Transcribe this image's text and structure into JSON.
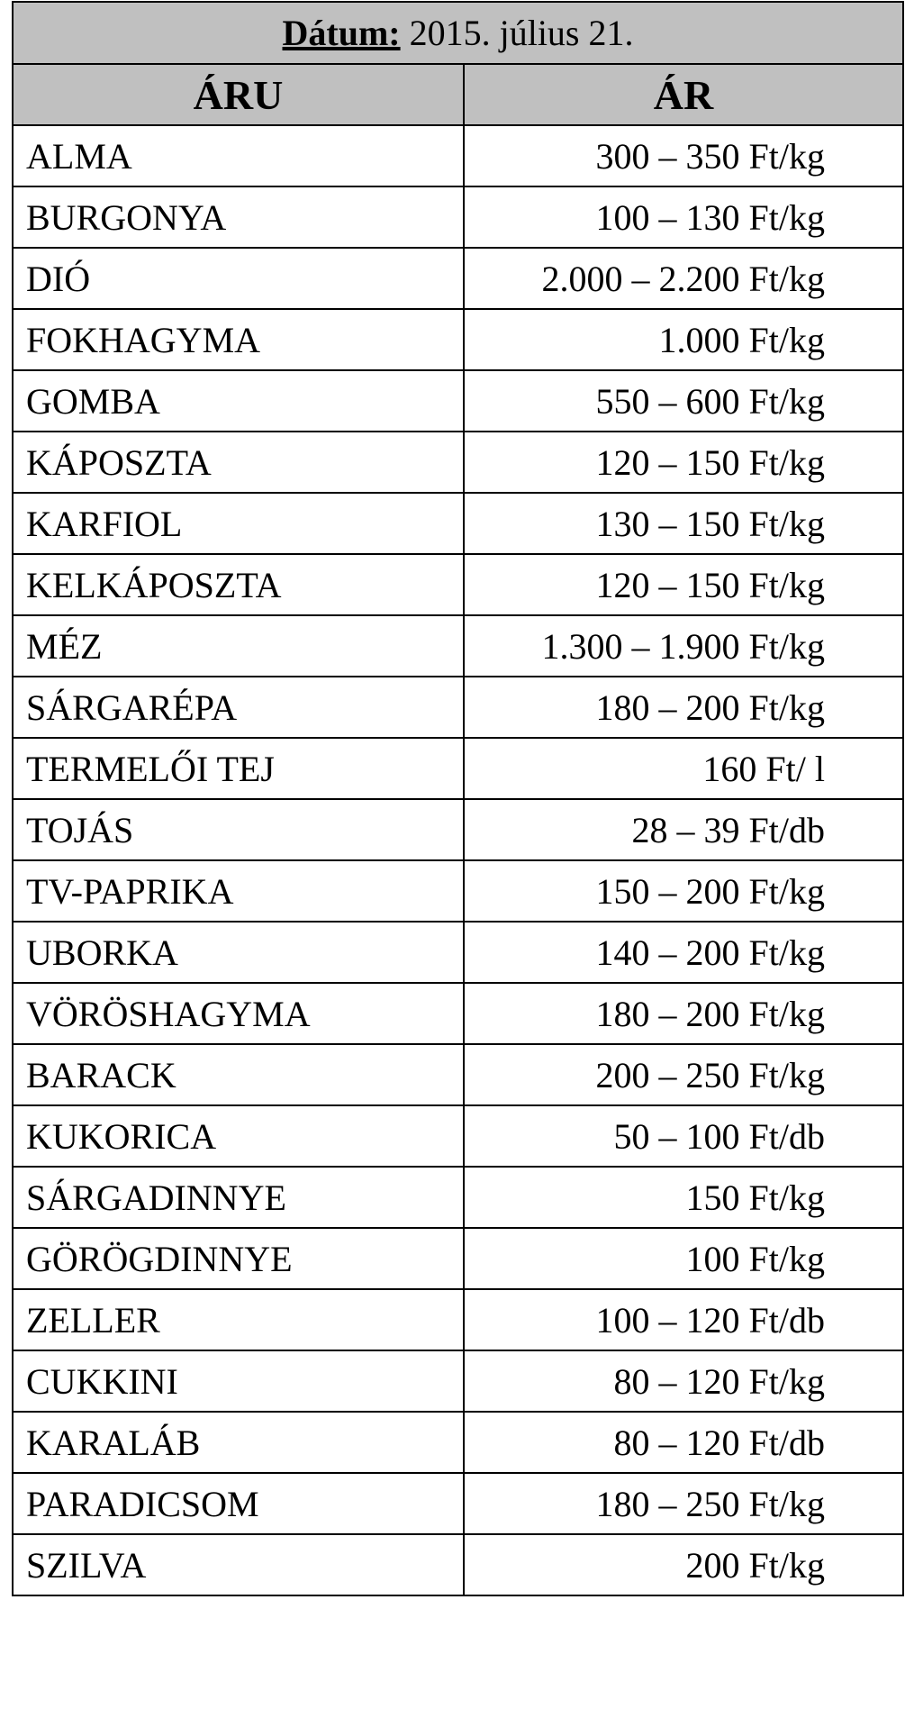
{
  "header": {
    "date_label": "Dátum:",
    "date_value": "2015. július 21."
  },
  "columns": [
    "ÁRU",
    "ÁR"
  ],
  "rows": [
    {
      "item": "ALMA",
      "price": "300 – 350 Ft/kg"
    },
    {
      "item": "BURGONYA",
      "price": "100 – 130 Ft/kg"
    },
    {
      "item": "DIÓ",
      "price": "2.000 – 2.200 Ft/kg"
    },
    {
      "item": "FOKHAGYMA",
      "price": "1.000 Ft/kg"
    },
    {
      "item": "GOMBA",
      "price": "550 – 600 Ft/kg"
    },
    {
      "item": "KÁPOSZTA",
      "price": "120 – 150 Ft/kg"
    },
    {
      "item": "KARFIOL",
      "price": "130 – 150 Ft/kg"
    },
    {
      "item": "KELKÁPOSZTA",
      "price": "120 – 150 Ft/kg"
    },
    {
      "item": "MÉZ",
      "price": "1.300 – 1.900 Ft/kg"
    },
    {
      "item": "SÁRGARÉPA",
      "price": "180 – 200 Ft/kg"
    },
    {
      "item": "TERMELŐI TEJ",
      "price": "160 Ft/ l"
    },
    {
      "item": "TOJÁS",
      "price": "28 – 39 Ft/db"
    },
    {
      "item": "TV-PAPRIKA",
      "price": "150 – 200 Ft/kg"
    },
    {
      "item": "UBORKA",
      "price": "140 – 200 Ft/kg"
    },
    {
      "item": "VÖRÖSHAGYMA",
      "price": "180 – 200 Ft/kg"
    },
    {
      "item": "BARACK",
      "price": "200 – 250 Ft/kg"
    },
    {
      "item": "KUKORICA",
      "price": "50 – 100 Ft/db"
    },
    {
      "item": "SÁRGADINNYE",
      "price": "150 Ft/kg"
    },
    {
      "item": "GÖRÖGDINNYE",
      "price": "100 Ft/kg"
    },
    {
      "item": "ZELLER",
      "price": "100 – 120 Ft/db"
    },
    {
      "item": "CUKKINI",
      "price": "80 – 120 Ft/kg"
    },
    {
      "item": "KARALÁB",
      "price": "80 – 120 Ft/db"
    },
    {
      "item": "PARADICSOM",
      "price": "180 – 250 Ft/kg"
    },
    {
      "item": "SZILVA",
      "price": "200 Ft/kg"
    }
  ],
  "colors": {
    "header_bg": "#c0c0c0",
    "border": "#000000"
  }
}
